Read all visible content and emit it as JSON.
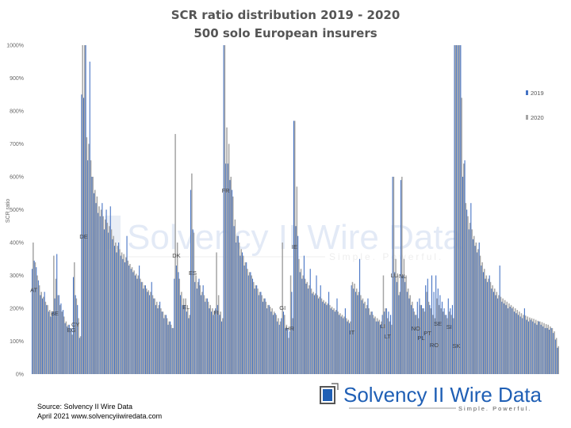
{
  "chart_data": {
    "type": "bar",
    "title": "SCR ratio distribution 2019 - 2020",
    "subtitle": "500 solo European insurers",
    "ylabel": "SCR ratio",
    "xlabel": "",
    "ylim": [
      0,
      1000
    ],
    "yticks": [
      "0%",
      "100%",
      "200%",
      "300%",
      "400%",
      "500%",
      "600%",
      "700%",
      "800%",
      "900%",
      "1000%"
    ],
    "legend_position": "right",
    "series_names": [
      "2019",
      "2020"
    ],
    "colors": {
      "2019": "#4472c4",
      "2020": "#a5a5a5"
    },
    "countries": [
      {
        "code": "AT",
        "label_y": 250,
        "v2020": [
          400,
          340,
          300,
          270,
          250,
          235,
          220,
          210,
          195,
          185
        ],
        "v2019": [
          320,
          345,
          325,
          285,
          240,
          230,
          250,
          210,
          190,
          175
        ]
      },
      {
        "code": "BE",
        "label_y": 178,
        "v2020": [
          360,
          290,
          240,
          210,
          190,
          175,
          160,
          150
        ],
        "v2019": [
          190,
          230,
          365,
          240,
          215,
          195,
          155,
          145
        ]
      },
      {
        "code": "BG",
        "label_y": 128,
        "v2020": [
          130,
          120
        ],
        "v2019": [
          150,
          140
        ]
      },
      {
        "code": "CY",
        "label_y": 145,
        "v2020": [
          340,
          230,
          170,
          115
        ],
        "v2019": [
          295,
          240,
          210,
          110
        ]
      },
      {
        "code": "DE",
        "label_y": 412,
        "v2020": [
          1000,
          1000,
          720,
          700,
          650,
          600,
          560,
          540,
          510,
          500,
          480,
          470,
          460,
          450,
          440,
          420,
          400,
          390,
          380,
          370,
          365,
          355,
          345,
          335,
          325,
          315,
          305,
          300,
          290,
          280,
          270,
          260,
          255,
          250,
          240,
          230,
          220,
          210,
          200,
          190,
          180,
          170,
          160,
          150,
          140
        ],
        "v2019": [
          850,
          840,
          1000,
          650,
          950,
          600,
          550,
          520,
          490,
          480,
          520,
          440,
          500,
          430,
          510,
          410,
          390,
          370,
          400,
          360,
          350,
          340,
          420,
          330,
          320,
          310,
          300,
          290,
          330,
          280,
          260,
          270,
          250,
          240,
          280,
          230,
          210,
          200,
          220,
          190,
          170,
          180,
          150,
          160,
          140
        ]
      },
      {
        "code": "DK",
        "label_y": 354,
        "v2020": [
          730,
          400,
          290,
          250,
          230
        ],
        "v2019": [
          290,
          330,
          310,
          240,
          210
        ]
      },
      {
        "code": "EL",
        "label_y": 198,
        "v2020": [
          230,
          200,
          180
        ],
        "v2019": [
          210,
          190,
          170
        ]
      },
      {
        "code": "ES",
        "label_y": 301,
        "v2020": [
          610,
          430,
          300,
          280,
          270,
          250,
          240,
          230,
          220,
          210,
          200,
          190
        ],
        "v2019": [
          560,
          440,
          280,
          260,
          290,
          240,
          270,
          220,
          230,
          200,
          190,
          180
        ]
      },
      {
        "code": "FI",
        "label_y": 181,
        "v2020": [
          370,
          240,
          190,
          170
        ],
        "v2019": [
          200,
          210,
          180,
          160
        ]
      },
      {
        "code": "FR",
        "label_y": 552,
        "v2020": [
          1000,
          750,
          700,
          600,
          540,
          470,
          420,
          400,
          380,
          360,
          340,
          320,
          310,
          300,
          280,
          270,
          260,
          250,
          240,
          230,
          220,
          210,
          205,
          200,
          190,
          180,
          170,
          160
        ],
        "v2019": [
          1000,
          640,
          640,
          590,
          560,
          450,
          400,
          420,
          360,
          370,
          330,
          340,
          300,
          310,
          290,
          260,
          270,
          240,
          250,
          220,
          230,
          200,
          210,
          190,
          180,
          185,
          160,
          150
        ]
      },
      {
        "code": "GI",
        "label_y": 195,
        "v2020": [
          400,
          180,
          150
        ],
        "v2019": [
          170,
          190,
          140
        ]
      },
      {
        "code": "HR",
        "label_y": 133,
        "v2020": [
          110,
          300,
          170
        ],
        "v2019": [
          140,
          130,
          250
        ]
      },
      {
        "code": "IE",
        "label_y": 381,
        "v2020": [
          770,
          570,
          350,
          320,
          300,
          290,
          280,
          270,
          260,
          250,
          245,
          240,
          235,
          230,
          225,
          220,
          215,
          210,
          205,
          200,
          195,
          190,
          185,
          180,
          175,
          170,
          165,
          160
        ],
        "v2019": [
          770,
          450,
          420,
          310,
          290,
          360,
          275,
          260,
          320,
          245,
          240,
          300,
          230,
          270,
          220,
          215,
          210,
          250,
          200,
          195,
          190,
          230,
          180,
          175,
          170,
          200,
          160,
          155
        ]
      },
      {
        "code": "IT",
        "label_y": 120,
        "v2020": [
          280,
          275,
          260,
          250,
          240,
          230,
          220,
          210,
          200,
          190,
          180,
          175,
          170,
          165,
          160
        ],
        "v2019": [
          270,
          260,
          250,
          240,
          350,
          225,
          215,
          200,
          230,
          180,
          190,
          170,
          160,
          160,
          150
        ]
      },
      {
        "code": "LI",
        "label_y": 140,
        "v2020": [
          300,
          200
        ],
        "v2019": [
          180,
          190
        ]
      },
      {
        "code": "LT",
        "label_y": 108,
        "v2020": [
          170,
          160,
          150
        ],
        "v2019": [
          200,
          190,
          180
        ]
      },
      {
        "code": "LU",
        "label_y": 294,
        "v2020": [
          600,
          350,
          300,
          250
        ],
        "v2019": [
          600,
          310,
          280,
          240
        ]
      },
      {
        "code": "NL",
        "label_y": 292,
        "v2020": [
          600,
          350,
          300,
          260,
          240,
          220
        ],
        "v2019": [
          590,
          300,
          280,
          250,
          230,
          210
        ]
      },
      {
        "code": "NO",
        "label_y": 133,
        "v2020": [
          190,
          180,
          170
        ],
        "v2019": [
          200,
          180,
          220
        ]
      },
      {
        "code": "PL",
        "label_y": 104,
        "v2020": [
          210,
          200,
          190
        ],
        "v2019": [
          230,
          210,
          200
        ]
      },
      {
        "code": "PT",
        "label_y": 118,
        "v2020": [
          250,
          220,
          200
        ],
        "v2019": [
          270,
          290,
          210
        ]
      },
      {
        "code": "RO",
        "label_y": 82,
        "v2020": [
          180,
          170
        ],
        "v2019": [
          300,
          250
        ]
      },
      {
        "code": "SE",
        "label_y": 147,
        "v2020": [
          230,
          210,
          200,
          190,
          180,
          170
        ],
        "v2019": [
          300,
          260,
          240,
          220,
          200,
          180
        ]
      },
      {
        "code": "SI",
        "label_y": 137,
        "v2020": [
          190,
          180,
          170
        ],
        "v2019": [
          230,
          200,
          210
        ]
      },
      {
        "code": "SK",
        "label_y": 80,
        "v2020": [
          1000,
          1000,
          1000,
          840,
          640,
          520,
          480,
          460,
          440,
          420,
          400,
          380,
          360,
          340,
          320,
          300,
          290,
          280,
          270,
          260,
          250,
          240,
          235,
          230,
          225,
          220,
          215,
          210,
          205,
          200,
          195,
          190,
          185,
          180,
          178,
          175,
          172,
          170,
          168,
          165,
          162,
          160,
          158,
          155,
          152,
          150,
          145,
          140,
          130,
          110,
          85
        ],
        "v2019": [
          1000,
          1000,
          1000,
          1000,
          600,
          650,
          500,
          440,
          520,
          410,
          390,
          370,
          400,
          330,
          310,
          290,
          280,
          300,
          260,
          250,
          240,
          230,
          330,
          220,
          215,
          210,
          200,
          205,
          200,
          190,
          185,
          180,
          175,
          170,
          200,
          165,
          160,
          165,
          160,
          155,
          150,
          160,
          150,
          145,
          140,
          140,
          135,
          140,
          125,
          105,
          80
        ]
      }
    ]
  },
  "watermark": {
    "name": "Solvency II Wire Data",
    "tagline": "Simple. Powerful."
  },
  "logo": {
    "name": "Solvency II Wire Data",
    "tagline": "Simple. Powerful."
  },
  "footer": {
    "source": "Source: Solvency II Wire Data",
    "date_url": "April 2021 www.solvencyiiwiredata.com"
  }
}
